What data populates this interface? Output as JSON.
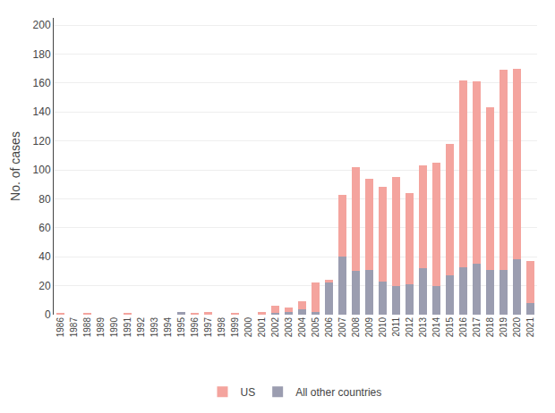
{
  "chart_data": {
    "type": "bar",
    "stacked": true,
    "categories": [
      "1986",
      "1987",
      "1988",
      "1989",
      "1990",
      "1991",
      "1992",
      "1993",
      "1994",
      "1995",
      "1996",
      "1997",
      "1998",
      "1999",
      "2000",
      "2001",
      "2002",
      "2003",
      "2004",
      "2005",
      "2006",
      "2007",
      "2008",
      "2009",
      "2010",
      "2011",
      "2012",
      "2013",
      "2014",
      "2015",
      "2016",
      "2017",
      "2018",
      "2019",
      "2020",
      "2021"
    ],
    "series": [
      {
        "name": "All other countries",
        "color": "#9b9db0",
        "values": [
          0,
          0,
          0,
          0,
          0,
          0,
          0,
          0,
          0,
          2,
          0,
          0,
          0,
          0,
          0,
          0,
          1,
          2,
          4,
          2,
          22,
          40,
          30,
          31,
          23,
          20,
          21,
          32,
          20,
          27,
          33,
          35,
          31,
          31,
          38,
          8
        ]
      },
      {
        "name": "US",
        "color": "#f4a49e",
        "values": [
          1,
          0,
          1,
          0,
          0,
          1,
          0,
          0,
          0,
          0,
          1,
          2,
          0,
          1,
          0,
          2,
          5,
          3,
          5,
          20,
          2,
          43,
          72,
          63,
          65,
          75,
          63,
          71,
          85,
          91,
          129,
          126,
          112,
          138,
          132,
          29
        ]
      }
    ],
    "ylabel": "No. of cases",
    "ylim": [
      0,
      205
    ],
    "yticks": [
      0,
      20,
      40,
      60,
      80,
      100,
      120,
      140,
      160,
      180,
      200
    ],
    "grid": true,
    "legend": "bottom"
  }
}
